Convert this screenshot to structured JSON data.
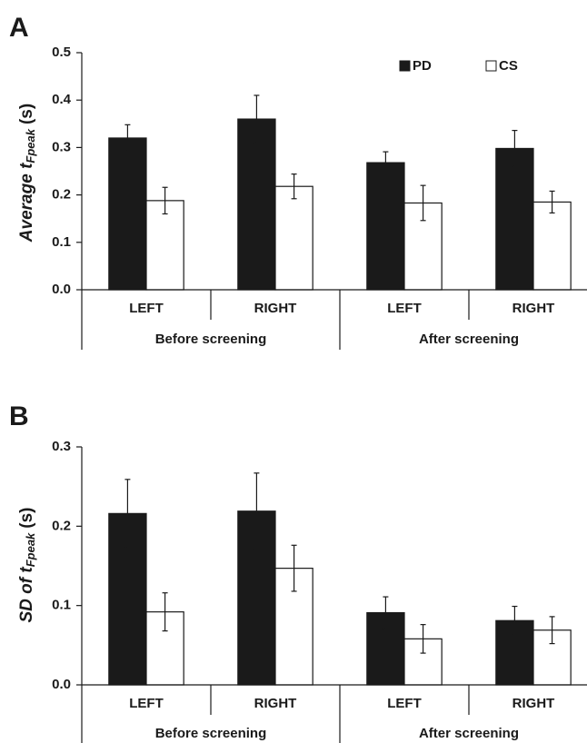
{
  "chart_data": [
    {
      "type": "bar",
      "panel": "A",
      "ylabel": "Average t",
      "ylabel_sub": "Fpeak",
      "ylabel_unit": "(s)",
      "categories": [
        "LEFT",
        "RIGHT",
        "LEFT",
        "RIGHT"
      ],
      "groups": [
        "Before screening",
        "After screening"
      ],
      "series": [
        {
          "name": "PD",
          "color": "#1a1a1a",
          "values": [
            0.32,
            0.36,
            0.268,
            0.298
          ],
          "errors": [
            0.028,
            0.05,
            0.023,
            0.038
          ]
        },
        {
          "name": "CS",
          "color": "#ffffff",
          "values": [
            0.188,
            0.218,
            0.183,
            0.185
          ],
          "errors": [
            0.028,
            0.026,
            0.037,
            0.023
          ]
        }
      ],
      "ylim": [
        0,
        0.5
      ],
      "yticks": [
        {
          "value": 0,
          "label": "0.0"
        },
        0.1,
        0.2,
        0.3,
        0.4,
        0.5
      ],
      "legend": "top-right"
    },
    {
      "type": "bar",
      "panel": "B",
      "ylabel": "SD of t",
      "ylabel_sub": "Fpeak",
      "ylabel_unit": "(s)",
      "categories": [
        "LEFT",
        "RIGHT",
        "LEFT",
        "RIGHT"
      ],
      "groups": [
        "Before screening",
        "After screening"
      ],
      "series": [
        {
          "color": "#1a1a1a",
          "values": [
            0.216,
            0.219,
            0.091,
            0.081
          ],
          "errors": [
            0.043,
            0.048,
            0.02,
            0.018
          ]
        },
        {
          "color": "#ffffff",
          "values": [
            0.092,
            0.147,
            0.058,
            0.069
          ],
          "errors": [
            0.024,
            0.029,
            0.018,
            0.017
          ]
        }
      ],
      "ylim": [
        0,
        0.3
      ],
      "yticks": [
        {
          "value": 0,
          "label": "0.0"
        },
        0.1,
        0.2,
        0.3
      ]
    }
  ]
}
